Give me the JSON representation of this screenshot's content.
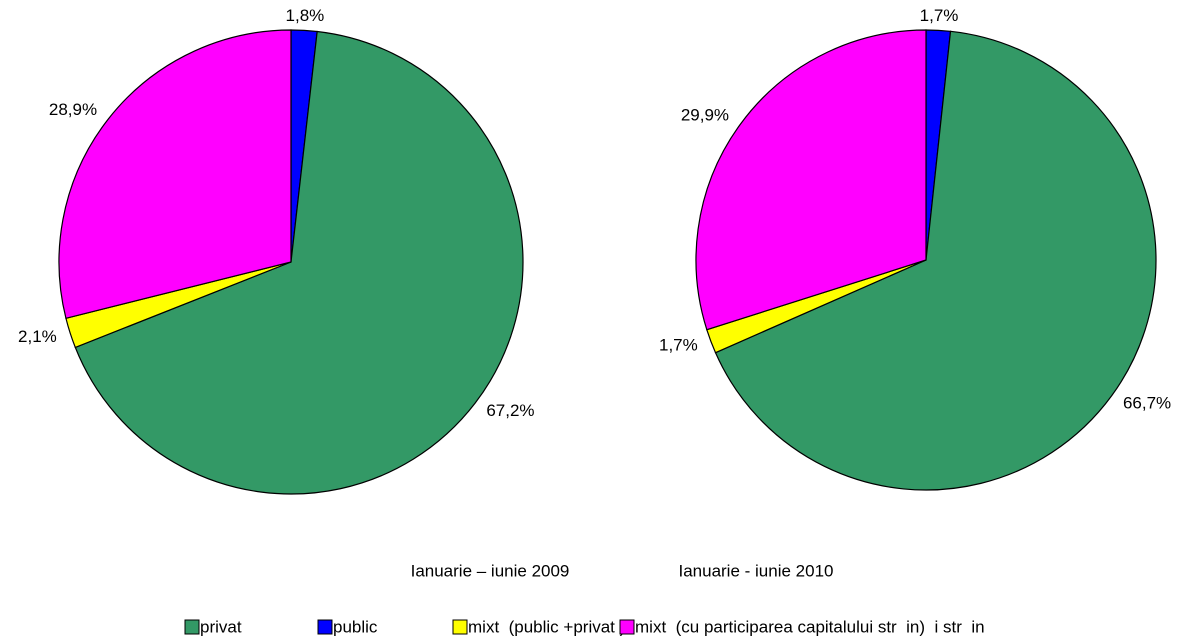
{
  "chart_data": [
    {
      "type": "pie",
      "title": "Ianuarie – iunie 2009",
      "values": [
        1.8,
        67.2,
        2.1,
        28.9
      ],
      "value_labels": [
        "1,8%",
        "67,2%",
        "2,1%",
        "28,9%"
      ]
    },
    {
      "type": "pie",
      "title": "Ianuarie - iunie 2010",
      "values": [
        1.7,
        66.7,
        1.7,
        29.9
      ],
      "value_labels": [
        "1,7%",
        "66,7%",
        "1,7%",
        "29,9%"
      ]
    }
  ],
  "legend": {
    "categories": [
      "public",
      "privat",
      "mixt  (public +privat )",
      "mixt  (cu participarea capitalului str  in)  i str  in"
    ],
    "colors": [
      "#0000ff",
      "#339966",
      "#ffff00",
      "#ff00ff"
    ]
  }
}
